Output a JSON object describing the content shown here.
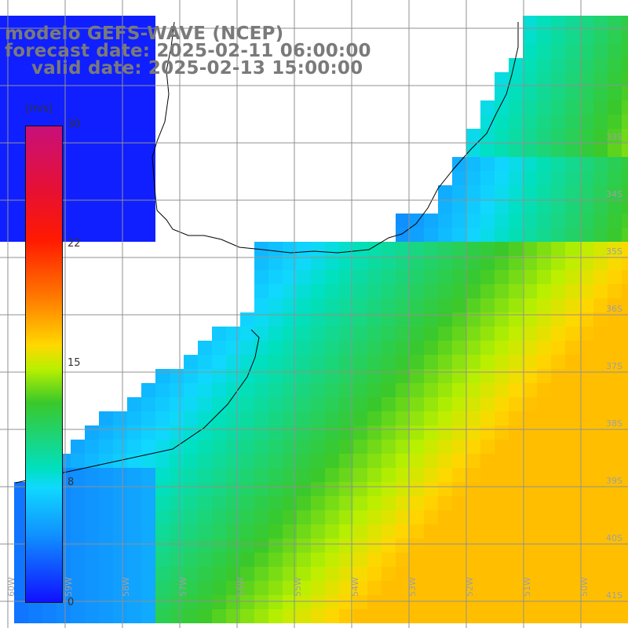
{
  "title": {
    "line1": "modelo GEFS-WAVE (NCEP)",
    "line2": "forecast date: 2025-02-11 06:00:00",
    "line3": "valid date: 2025-02-13 15:00:00"
  },
  "colorbar": {
    "unit": "[m/s]",
    "ticks": [
      "30",
      "22",
      "15",
      "8",
      "0"
    ],
    "colors": [
      "#c8107a",
      "#e81030",
      "#ff1a00",
      "#ff7a00",
      "#ffd800",
      "#b8f000",
      "#3ac82a",
      "#00e0c0",
      "#10d8ff",
      "#1090ff",
      "#1010ff"
    ]
  },
  "grid": {
    "lat_labels": [
      "33S",
      "34S",
      "35S",
      "36S",
      "37S",
      "38S",
      "39S",
      "40S",
      "41S"
    ],
    "lon_labels": [
      "60W",
      "59W",
      "58W",
      "57W",
      "56W",
      "55W",
      "54W",
      "53W",
      "52W",
      "51W",
      "50W"
    ]
  },
  "map": {
    "land_color": "#ffffff",
    "coast_color": "#000000",
    "grid_color": "#909090",
    "arrow_color": "#ffffff"
  }
}
